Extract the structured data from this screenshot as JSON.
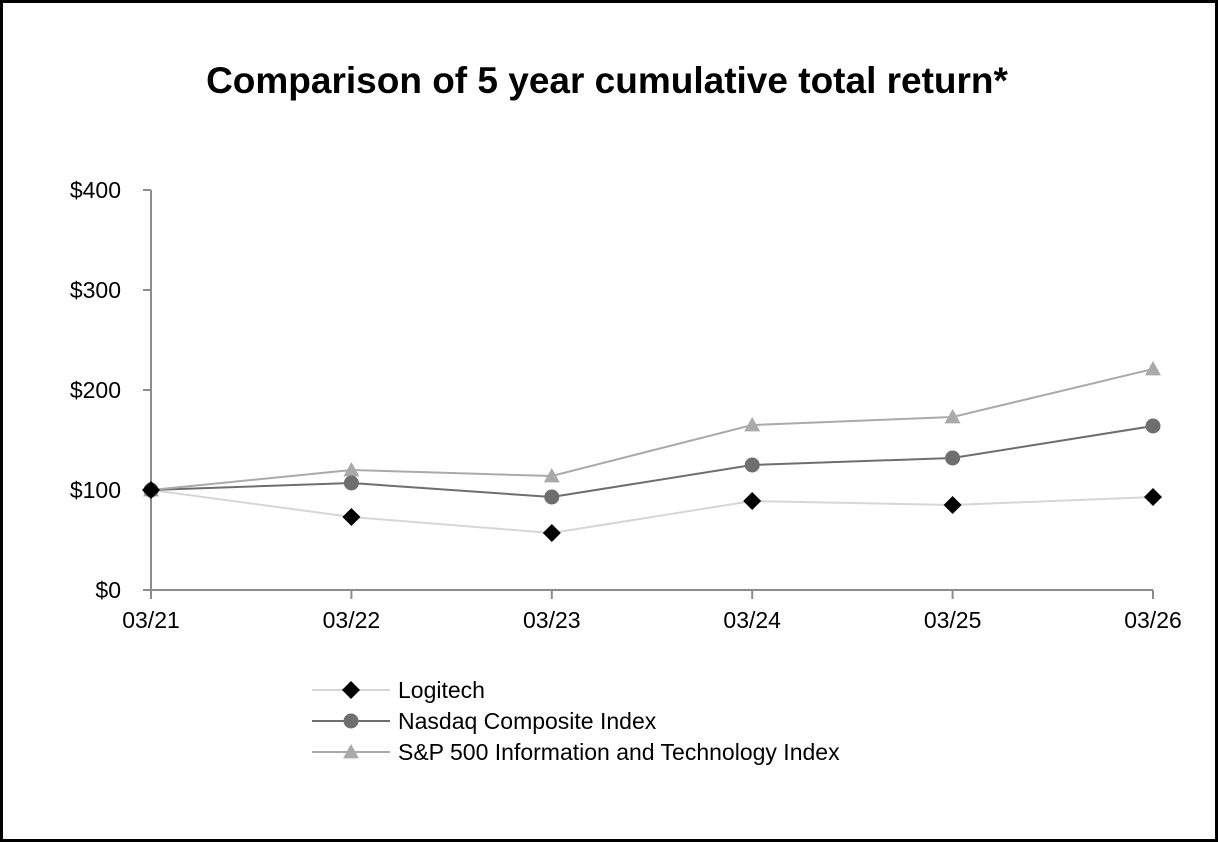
{
  "chart_data": {
    "type": "line",
    "title": "Comparison of 5 year cumulative total return*",
    "xlabel": "",
    "ylabel": "",
    "categories": [
      "03/21",
      "03/22",
      "03/23",
      "03/24",
      "03/25",
      "03/26"
    ],
    "ylim": [
      0,
      400
    ],
    "yticks": [
      0,
      100,
      200,
      300,
      400
    ],
    "ytick_labels": [
      "$0",
      "$100",
      "$200",
      "$300",
      "$400"
    ],
    "grid": false,
    "legend_position": "bottom-center",
    "series": [
      {
        "name": "Logitech",
        "values": [
          100,
          73,
          57,
          89,
          85,
          93
        ],
        "line_color": "#d6d6d6",
        "marker_color": "#000000",
        "marker": "diamond"
      },
      {
        "name": "Nasdaq Composite Index",
        "values": [
          100,
          107,
          93,
          125,
          132,
          164
        ],
        "line_color": "#6e6e6e",
        "marker_color": "#6e6e6e",
        "marker": "circle"
      },
      {
        "name": "S&P 500 Information and Technology Index",
        "values": [
          100,
          120,
          114,
          165,
          173,
          221
        ],
        "line_color": "#aaaaaa",
        "marker_color": "#aaaaaa",
        "marker": "triangle"
      }
    ]
  }
}
